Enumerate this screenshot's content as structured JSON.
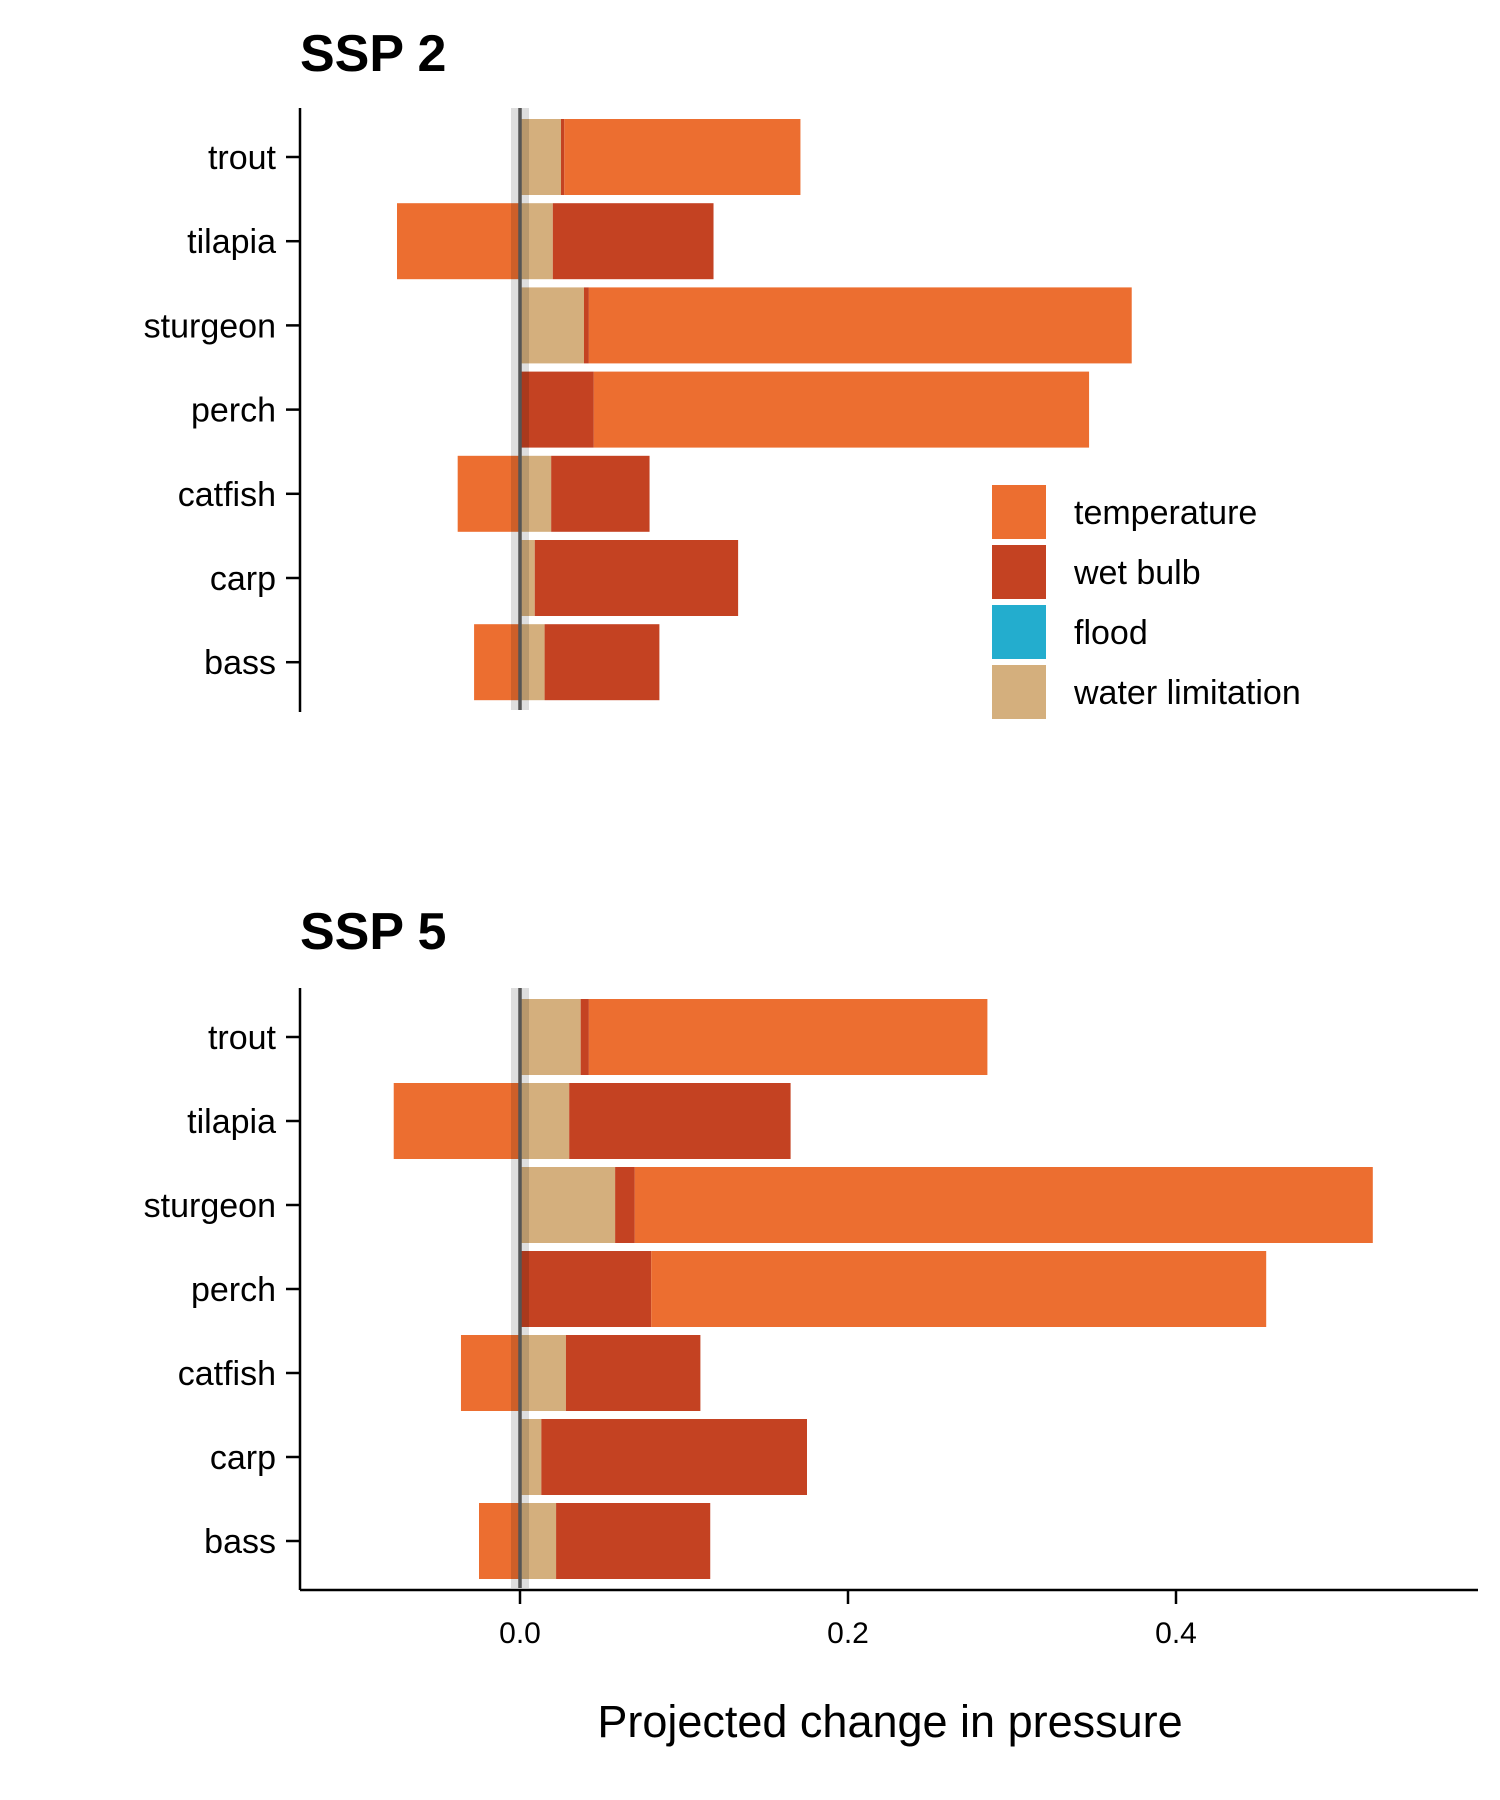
{
  "chart_data": [
    {
      "type": "bar",
      "orientation": "horizontal",
      "stacked": "diverging",
      "title": "SSP 2",
      "categories": [
        "trout",
        "tilapia",
        "sturgeon",
        "perch",
        "catfish",
        "carp",
        "bass"
      ],
      "series": [
        {
          "name": "water limitation",
          "color": "#D4AF7D",
          "values": [
            0.025,
            0.02,
            0.039,
            0.0,
            0.019,
            0.009,
            0.015
          ]
        },
        {
          "name": "wet bulb",
          "color": "#C44222",
          "values": [
            0.002,
            0.098,
            0.003,
            0.045,
            0.06,
            0.124,
            0.07
          ]
        },
        {
          "name": "flood",
          "color": "#23ADCE",
          "values": [
            0,
            0,
            0,
            0,
            0,
            0,
            0
          ]
        },
        {
          "name": "temperature",
          "color": "#EC6E30",
          "values": [
            0.144,
            -0.075,
            0.331,
            0.302,
            -0.038,
            0.0,
            -0.028
          ]
        }
      ],
      "xlim": [
        -0.13,
        0.585
      ],
      "grid": false
    },
    {
      "type": "bar",
      "orientation": "horizontal",
      "stacked": "diverging",
      "title": "SSP 5",
      "categories": [
        "trout",
        "tilapia",
        "sturgeon",
        "perch",
        "catfish",
        "carp",
        "bass"
      ],
      "series": [
        {
          "name": "water limitation",
          "color": "#D4AF7D",
          "values": [
            0.037,
            0.03,
            0.058,
            0.0,
            0.028,
            0.013,
            0.022
          ]
        },
        {
          "name": "wet bulb",
          "color": "#C44222",
          "values": [
            0.005,
            0.135,
            0.012,
            0.08,
            0.082,
            0.162,
            0.094
          ]
        },
        {
          "name": "flood",
          "color": "#23ADCE",
          "values": [
            0,
            0,
            0,
            0,
            0,
            0,
            0
          ]
        },
        {
          "name": "temperature",
          "color": "#EC6E30",
          "values": [
            0.243,
            -0.077,
            0.45,
            0.375,
            -0.036,
            0.0,
            -0.025
          ]
        }
      ],
      "xlim": [
        -0.13,
        0.585
      ],
      "xticks": [
        "0.0",
        "0.2",
        "0.4"
      ],
      "xlabel": "Projected change in pressure",
      "grid": false
    }
  ],
  "legend": {
    "position": "right",
    "items": [
      {
        "label": "temperature",
        "color": "#EC6E30"
      },
      {
        "label": "wet bulb",
        "color": "#C44222"
      },
      {
        "label": "flood",
        "color": "#23ADCE"
      },
      {
        "label": "water limitation",
        "color": "#D4AF7D"
      }
    ]
  }
}
